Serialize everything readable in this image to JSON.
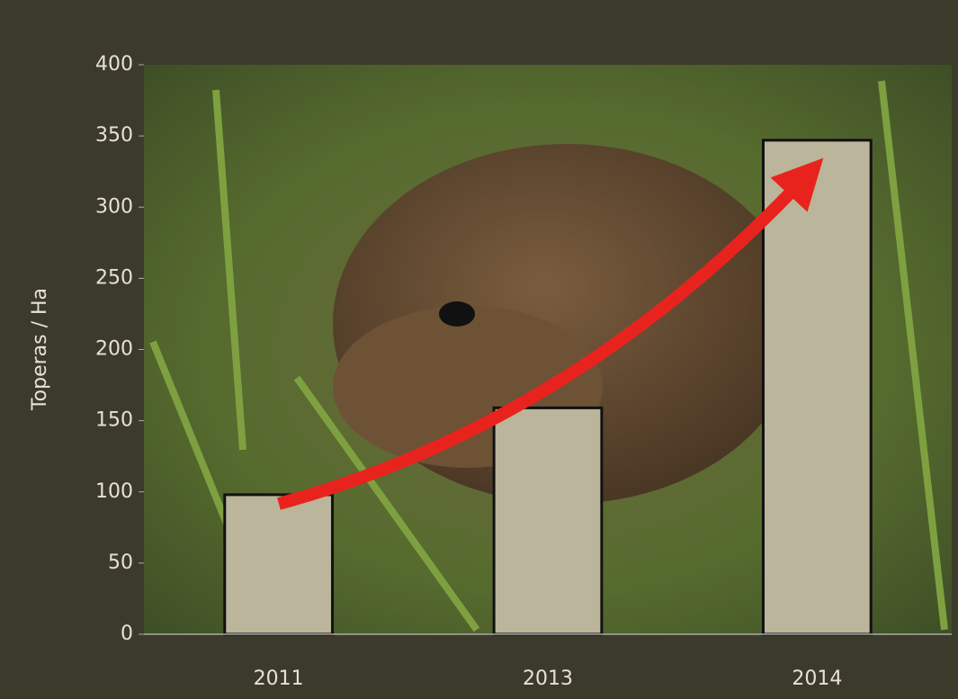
{
  "chart_data": {
    "type": "bar",
    "ylabel": "Toperas / Ha",
    "categories": [
      "2011",
      "2013",
      "2014"
    ],
    "values": [
      98,
      159,
      347
    ],
    "color": "#bab59b",
    "ylim": [
      0,
      400
    ],
    "yticks": [
      0,
      50,
      100,
      150,
      200,
      250,
      300,
      350,
      400
    ]
  }
}
